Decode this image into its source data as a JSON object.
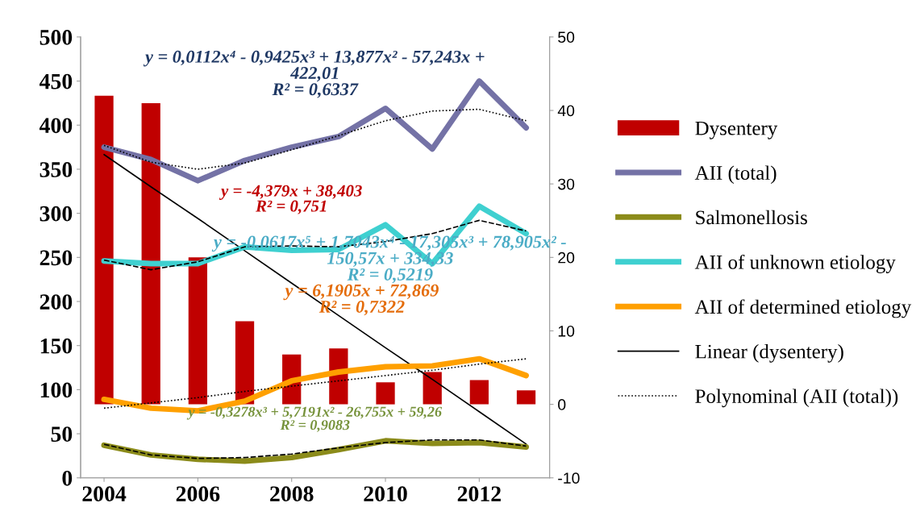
{
  "chart_data": {
    "type": "line",
    "categories": [
      "2004",
      null,
      "2006",
      null,
      "2008",
      null,
      "2010",
      null,
      "2012",
      null
    ],
    "ylim": [
      0,
      500
    ],
    "yticks": [
      0,
      50,
      100,
      150,
      200,
      250,
      300,
      350,
      400,
      450,
      500
    ],
    "y2lim": [
      -10,
      50
    ],
    "y2ticks": [
      -10,
      0,
      10,
      20,
      30,
      40,
      50
    ],
    "legend": "right",
    "grid": false,
    "series": [
      {
        "name": "Dysentery",
        "type": "bar",
        "axis": "y2",
        "color": "#c00000",
        "values": [
          42,
          41,
          20,
          11.3,
          6.8,
          7.6,
          3,
          4.4,
          3.3,
          1.9
        ]
      },
      {
        "name": "AII (total)",
        "color": "#7472a6",
        "values": [
          375,
          361,
          337,
          360,
          375,
          387,
          419,
          373,
          450,
          397
        ]
      },
      {
        "name": "Salmonellosis",
        "color": "#8b8b1a",
        "values": [
          37,
          26,
          21,
          19,
          23,
          32,
          42,
          39,
          40,
          35
        ]
      },
      {
        "name": "AII of unknown etiology",
        "color": "#3fd0d0",
        "values": [
          246,
          243,
          243,
          262,
          258,
          259,
          287,
          243,
          308,
          277
        ]
      },
      {
        "name": "AII of determined etiology",
        "color": "#ffa000",
        "values": [
          89,
          79,
          76,
          87,
          110,
          120,
          126,
          127,
          135,
          116
        ]
      },
      {
        "name": "Linear (dysentery)",
        "axis": "y2",
        "color": "#000000",
        "line_style": "solid",
        "values": [
          34.0,
          29.6,
          25.3,
          20.9,
          16.5,
          12.1,
          7.7,
          3.4,
          -1.0,
          -5.4
        ]
      },
      {
        "name": "Polynominal (AII (total))",
        "color": "#000000",
        "line_style": "dotted",
        "values": [
          377,
          358,
          350,
          357,
          372,
          388,
          405,
          416,
          418,
          405
        ]
      },
      {
        "color": "#000000",
        "line_style": "dashed",
        "values": [
          247,
          236,
          245,
          262,
          263,
          262,
          268,
          277,
          292,
          280
        ]
      },
      {
        "color": "#000000",
        "line_style": "dashed",
        "values": [
          38,
          26,
          22,
          23,
          27,
          34,
          40,
          43,
          43,
          36
        ]
      },
      {
        "color": "#000000",
        "line_style": "dotted",
        "values": [
          79,
          85,
          91,
          98,
          104,
          110,
          116,
          122,
          129,
          135
        ]
      }
    ],
    "annotations": [
      "y = 0,0112x⁴ - 0,9425x³ + 13,877x² - 57,243x +\n422,01\nR² = 0,6337",
      "y = -0,0617x⁵ + 1,7043x⁴ - 17,305x³ + 78,905x² -\n150,57x + 334,33\nR² = 0,5219",
      "y = -4,379x + 38,403\nR² = 0,751",
      "y = 6,1905x + 72,869\nR² = 0,7322",
      "y = -0,3278x³ + 5,7191x² - 26,755x + 59,26\nR² = 0,9083"
    ]
  }
}
